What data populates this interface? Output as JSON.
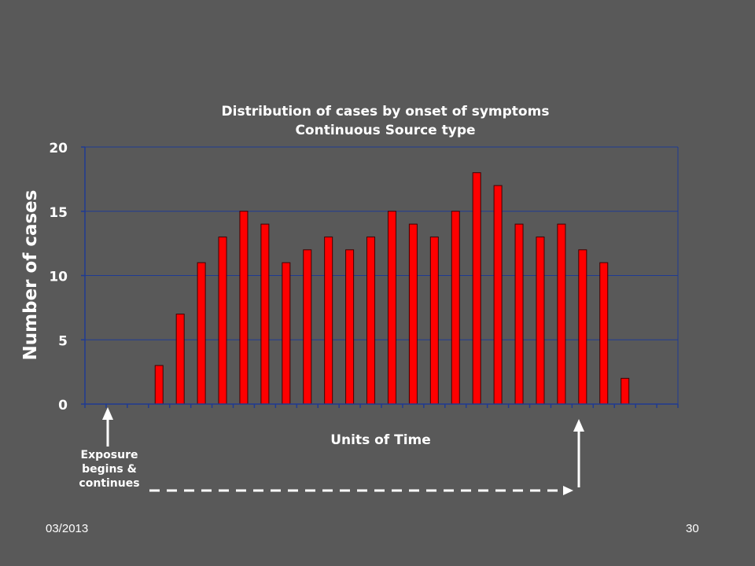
{
  "colors": {
    "background": "#595959",
    "bar_fill": "#ff0000",
    "bar_stroke": "#400000",
    "grid": "#1f3a93",
    "text": "#ffffff"
  },
  "chart_data": {
    "type": "bar",
    "title_line1": "Distribution of cases by onset of symptoms",
    "title_line2": "Continuous Source type",
    "xlabel": "Units of Time",
    "ylabel": "Number of cases",
    "ylim": [
      0,
      20
    ],
    "yticks": [
      0,
      5,
      10,
      15,
      20
    ],
    "grid": true,
    "values": [
      0,
      0,
      0,
      3,
      7,
      11,
      13,
      15,
      14,
      11,
      12,
      13,
      12,
      13,
      15,
      14,
      13,
      15,
      18,
      17,
      14,
      13,
      14,
      12,
      11,
      2,
      0,
      0
    ]
  },
  "annotation": {
    "line1": "Exposure",
    "line2": "begins &",
    "line3": "continues"
  },
  "footer": {
    "date": "03/2013",
    "page": "30"
  }
}
